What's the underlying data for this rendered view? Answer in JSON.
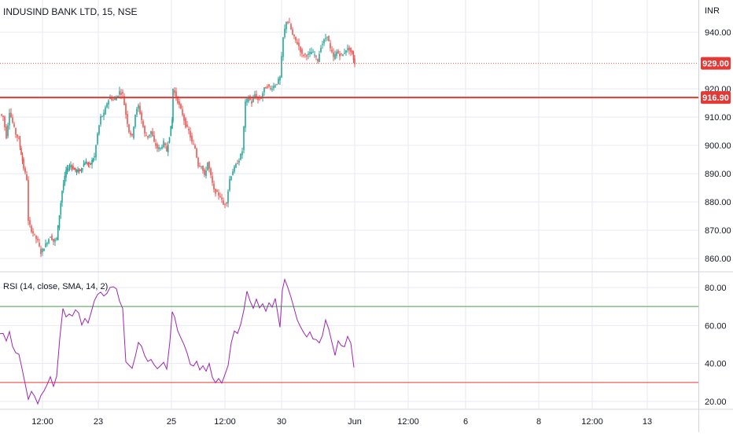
{
  "header": {
    "title": "INDUSIND BANK LTD, 15, NSE",
    "currency": "INR"
  },
  "colors": {
    "up": "#26a69a",
    "down": "#ef5350",
    "grid": "#e6eaf0",
    "support_line": "#e53935",
    "rsi_line": "#9c27b0",
    "rsi_upper_band": "#43a047",
    "rsi_lower_band": "#e53935",
    "axis_text": "#131722",
    "label_bg": "#e53935"
  },
  "chart_data": [
    {
      "type": "candlestick",
      "title": "INDUSIND BANK LTD, 15, NSE",
      "y_axis_unit": "INR",
      "y_ticks": [
        "940.00",
        "920.00",
        "910.00",
        "900.00",
        "890.00",
        "880.00",
        "870.00",
        "860.00"
      ],
      "ylim": [
        855,
        947
      ],
      "x_ticks": [
        "12:00",
        "23",
        "25",
        "12:00",
        "30",
        "Jun",
        "12:00",
        "6",
        "8",
        "12:00",
        "13"
      ],
      "last_price_label": "929.00",
      "horizontal_line_label": "916.90",
      "horizontal_line_value": 916.9,
      "close_path": [
        [
          0,
          911
        ],
        [
          4,
          910
        ],
        [
          8,
          903
        ],
        [
          12,
          912
        ],
        [
          16,
          908
        ],
        [
          20,
          904
        ],
        [
          24,
          902
        ],
        [
          30,
          892
        ],
        [
          34,
          888
        ],
        [
          36,
          873
        ],
        [
          40,
          870
        ],
        [
          44,
          868
        ],
        [
          48,
          866
        ],
        [
          52,
          862
        ],
        [
          56,
          864
        ],
        [
          60,
          866
        ],
        [
          64,
          868
        ],
        [
          68,
          866
        ],
        [
          72,
          867
        ],
        [
          79,
          884
        ],
        [
          84,
          891
        ],
        [
          90,
          893
        ],
        [
          96,
          891
        ],
        [
          102,
          891
        ],
        [
          108,
          894
        ],
        [
          114,
          893
        ],
        [
          120,
          896
        ],
        [
          124,
          904
        ],
        [
          128,
          910
        ],
        [
          132,
          911
        ],
        [
          136,
          915
        ],
        [
          140,
          917
        ],
        [
          144,
          916
        ],
        [
          148,
          917
        ],
        [
          152,
          919
        ],
        [
          156,
          918
        ],
        [
          160,
          911
        ],
        [
          164,
          905
        ],
        [
          168,
          903
        ],
        [
          172,
          911
        ],
        [
          176,
          914
        ],
        [
          180,
          909
        ],
        [
          184,
          904
        ],
        [
          188,
          903
        ],
        [
          192,
          905
        ],
        [
          196,
          901
        ],
        [
          200,
          899
        ],
        [
          204,
          899
        ],
        [
          208,
          901
        ],
        [
          212,
          898
        ],
        [
          219,
          909
        ],
        [
          220,
          920
        ],
        [
          224,
          917
        ],
        [
          228,
          914
        ],
        [
          232,
          911
        ],
        [
          236,
          907
        ],
        [
          240,
          905
        ],
        [
          244,
          901
        ],
        [
          248,
          899
        ],
        [
          252,
          893
        ],
        [
          256,
          893
        ],
        [
          260,
          889
        ],
        [
          264,
          894
        ],
        [
          268,
          889
        ],
        [
          272,
          884
        ],
        [
          276,
          883
        ],
        [
          280,
          882
        ],
        [
          284,
          879
        ],
        [
          288,
          880
        ],
        [
          292,
          888
        ],
        [
          296,
          891
        ],
        [
          300,
          893
        ],
        [
          304,
          895
        ],
        [
          308,
          898
        ],
        [
          312,
          915
        ],
        [
          316,
          917
        ],
        [
          320,
          915
        ],
        [
          324,
          918
        ],
        [
          328,
          916
        ],
        [
          332,
          917
        ],
        [
          336,
          920
        ],
        [
          340,
          921
        ],
        [
          344,
          920
        ],
        [
          348,
          921
        ],
        [
          352,
          922
        ],
        [
          356,
          924
        ],
        [
          360,
          938
        ],
        [
          364,
          944
        ],
        [
          368,
          943
        ],
        [
          372,
          939
        ],
        [
          376,
          937
        ],
        [
          380,
          935
        ],
        [
          384,
          932
        ],
        [
          388,
          932
        ],
        [
          392,
          932
        ],
        [
          396,
          933
        ],
        [
          400,
          932
        ],
        [
          404,
          930
        ],
        [
          408,
          935
        ],
        [
          412,
          937
        ],
        [
          416,
          939
        ],
        [
          420,
          934
        ],
        [
          424,
          931
        ],
        [
          428,
          933
        ],
        [
          432,
          932
        ],
        [
          436,
          932
        ],
        [
          440,
          934
        ],
        [
          444,
          934
        ],
        [
          448,
          932
        ],
        [
          451,
          929
        ]
      ]
    },
    {
      "type": "line",
      "title": "RSI (14, close, SMA, 14, 2)",
      "y_ticks": [
        "80.00",
        "60.00",
        "40.00",
        "20.00"
      ],
      "ylim": [
        17,
        87
      ],
      "upper_band": 70,
      "lower_band": 30,
      "rsi_path": [
        [
          0,
          55
        ],
        [
          4,
          57
        ],
        [
          8,
          51
        ],
        [
          12,
          56
        ],
        [
          16,
          50
        ],
        [
          20,
          46
        ],
        [
          24,
          44
        ],
        [
          28,
          38
        ],
        [
          32,
          28
        ],
        [
          36,
          22
        ],
        [
          40,
          24
        ],
        [
          44,
          22
        ],
        [
          48,
          19
        ],
        [
          52,
          23
        ],
        [
          56,
          26
        ],
        [
          60,
          28
        ],
        [
          64,
          33
        ],
        [
          68,
          29
        ],
        [
          72,
          32
        ],
        [
          76,
          54
        ],
        [
          80,
          69
        ],
        [
          84,
          66
        ],
        [
          88,
          67
        ],
        [
          92,
          64
        ],
        [
          96,
          68
        ],
        [
          100,
          66
        ],
        [
          104,
          60
        ],
        [
          108,
          65
        ],
        [
          112,
          62
        ],
        [
          116,
          68
        ],
        [
          120,
          72
        ],
        [
          124,
          77
        ],
        [
          128,
          79
        ],
        [
          132,
          76
        ],
        [
          136,
          78
        ],
        [
          140,
          80
        ],
        [
          144,
          79
        ],
        [
          148,
          80
        ],
        [
          152,
          74
        ],
        [
          156,
          70
        ],
        [
          160,
          42
        ],
        [
          164,
          40
        ],
        [
          168,
          38
        ],
        [
          172,
          45
        ],
        [
          176,
          52
        ],
        [
          180,
          48
        ],
        [
          184,
          44
        ],
        [
          188,
          41
        ],
        [
          192,
          43
        ],
        [
          196,
          38
        ],
        [
          200,
          37
        ],
        [
          204,
          38
        ],
        [
          208,
          40
        ],
        [
          212,
          36
        ],
        [
          216,
          50
        ],
        [
          219,
          68
        ],
        [
          222,
          64
        ],
        [
          226,
          58
        ],
        [
          230,
          52
        ],
        [
          234,
          50
        ],
        [
          238,
          44
        ],
        [
          242,
          40
        ],
        [
          246,
          38
        ],
        [
          250,
          41
        ],
        [
          254,
          36
        ],
        [
          258,
          38
        ],
        [
          262,
          36
        ],
        [
          266,
          40
        ],
        [
          270,
          34
        ],
        [
          274,
          31
        ],
        [
          278,
          33
        ],
        [
          282,
          31
        ],
        [
          286,
          33
        ],
        [
          290,
          40
        ],
        [
          294,
          52
        ],
        [
          298,
          58
        ],
        [
          302,
          55
        ],
        [
          306,
          60
        ],
        [
          310,
          68
        ],
        [
          314,
          78
        ],
        [
          318,
          74
        ],
        [
          322,
          70
        ],
        [
          326,
          73
        ],
        [
          330,
          68
        ],
        [
          334,
          71
        ],
        [
          338,
          69
        ],
        [
          342,
          72
        ],
        [
          346,
          70
        ],
        [
          350,
          74
        ],
        [
          356,
          60
        ],
        [
          359,
          78
        ],
        [
          362,
          83
        ],
        [
          366,
          80
        ],
        [
          370,
          76
        ],
        [
          374,
          69
        ],
        [
          378,
          62
        ],
        [
          382,
          58
        ],
        [
          386,
          56
        ],
        [
          390,
          54
        ],
        [
          394,
          56
        ],
        [
          398,
          52
        ],
        [
          402,
          54
        ],
        [
          406,
          50
        ],
        [
          410,
          55
        ],
        [
          414,
          62
        ],
        [
          418,
          58
        ],
        [
          422,
          50
        ],
        [
          426,
          45
        ],
        [
          430,
          52
        ],
        [
          434,
          49
        ],
        [
          438,
          48
        ],
        [
          442,
          53
        ],
        [
          446,
          52
        ],
        [
          450,
          37
        ]
      ]
    }
  ]
}
